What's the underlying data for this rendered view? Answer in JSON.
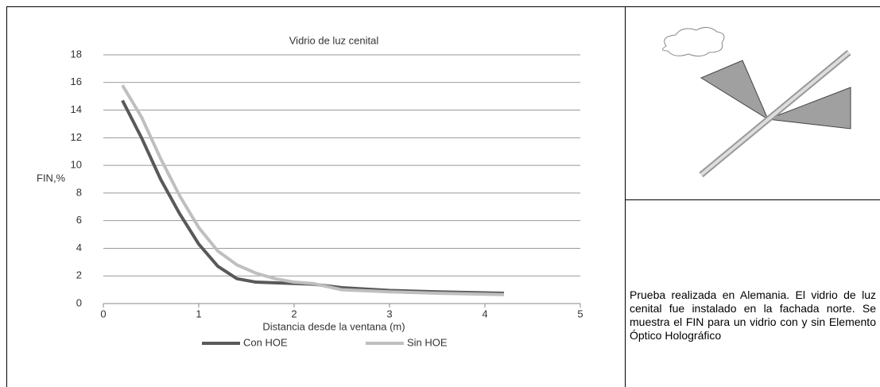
{
  "chart_data": {
    "type": "line",
    "title": "Vidrio de luz cenital",
    "x_label": "Distancia desde la ventana  (m)",
    "y_label": "FIN,%",
    "x": [
      0.2,
      0.4,
      0.6,
      0.8,
      1.0,
      1.2,
      1.4,
      1.6,
      1.8,
      2.0,
      2.2,
      2.5,
      3.0,
      3.5,
      4.2
    ],
    "series": [
      {
        "name": "Con HOE",
        "color": "#595959",
        "values": [
          14.7,
          12,
          9,
          6.5,
          4.3,
          2.7,
          1.8,
          1.55,
          1.5,
          1.45,
          1.4,
          1.15,
          0.95,
          0.85,
          0.75
        ]
      },
      {
        "name": "Sin HOE",
        "color": "#bfbfbf",
        "values": [
          15.8,
          13.5,
          10.5,
          7.8,
          5.5,
          3.8,
          2.8,
          2.2,
          1.8,
          1.55,
          1.45,
          1.0,
          0.85,
          0.75,
          0.65
        ]
      }
    ],
    "xlim": [
      0,
      5
    ],
    "xticks": [
      0,
      1,
      2,
      3,
      4,
      5
    ],
    "ylim": [
      0,
      18
    ],
    "yticks": [
      0,
      2,
      4,
      6,
      8,
      10,
      12,
      14,
      16,
      18
    ],
    "grid": true
  },
  "caption": "Prueba realizada en Alemania. El vidrio de luz cenital fue instalado en la fachada norte. Se muestra el FIN para un vidrio con y sin Elemento Óptico Holográfico"
}
